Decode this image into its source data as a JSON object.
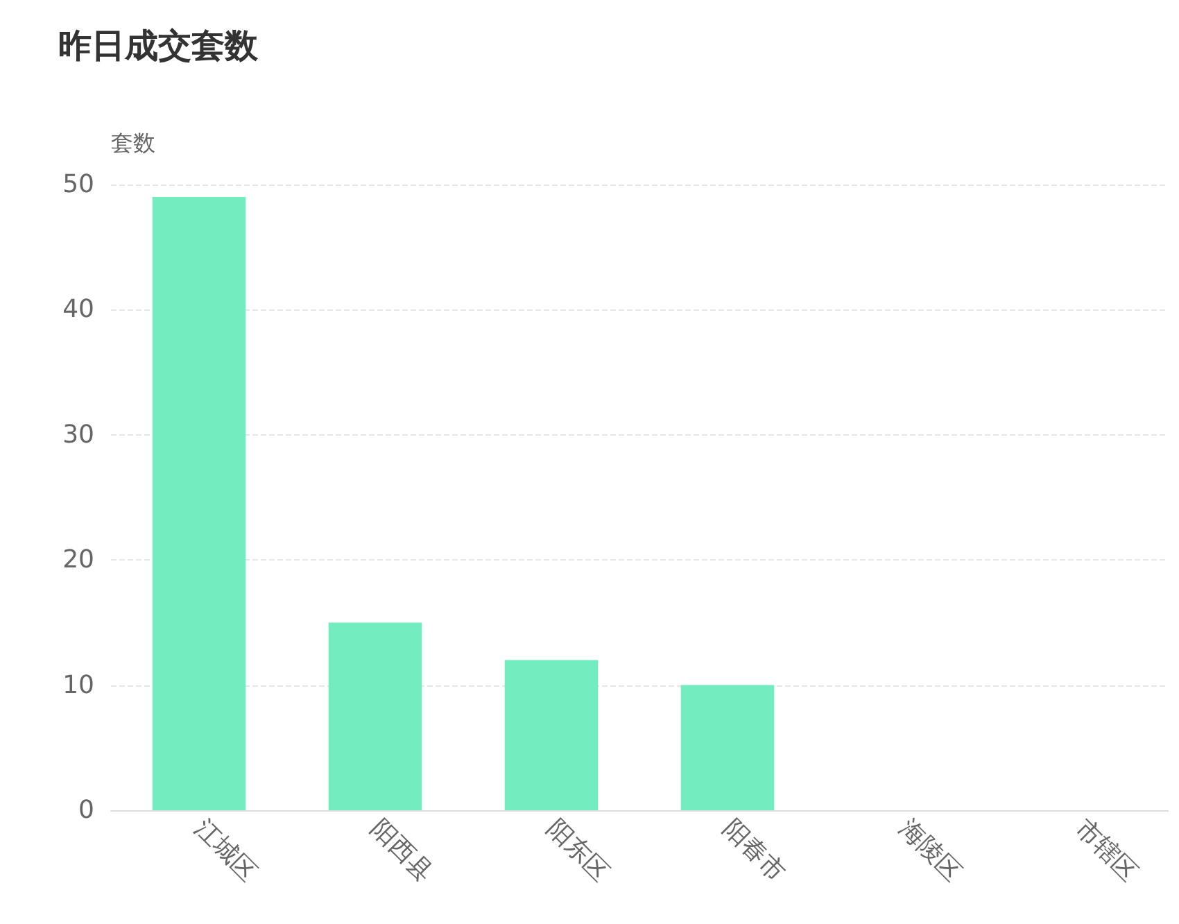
{
  "chart_data": {
    "type": "bar",
    "title": "昨日成交套数",
    "ylabel": "套数",
    "categories": [
      "江城区",
      "阳西县",
      "阳东区",
      "阳春市",
      "海陵区",
      "市辖区"
    ],
    "values": [
      49,
      15,
      12,
      10,
      0,
      0
    ],
    "color": "#73ecbf",
    "ylim": [
      0,
      50
    ],
    "yticks": [
      0,
      10,
      20,
      30,
      40,
      50
    ],
    "grid": "y"
  }
}
